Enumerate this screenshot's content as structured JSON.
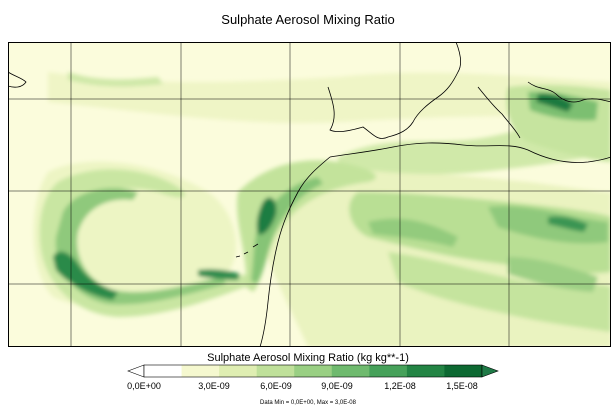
{
  "figure": {
    "title": "Sulphate Aerosol Mixing Ratio",
    "colorbar_label": "Sulphate Aerosol Mixing Ratio (kg kg**-1)",
    "data_range_text": "Data Min = 0,0E+00, Max = 3,0E-08"
  },
  "colorbar": {
    "tick_labels": [
      "0,0E+00",
      "3,0E-09",
      "6,0E-09",
      "9,0E-09",
      "1,2E-08",
      "1,5E-08"
    ],
    "colors": [
      "#ffffff",
      "#f5f8cf",
      "#dfeeb2",
      "#bfe09a",
      "#99cf83",
      "#6fba6e",
      "#46a15a",
      "#238444",
      "#0d6932"
    ],
    "extend_low": "#ffffff",
    "extend_high": "#1f7a47"
  },
  "colors": {
    "land": "#fbfcdc",
    "frame": "#000000"
  }
}
